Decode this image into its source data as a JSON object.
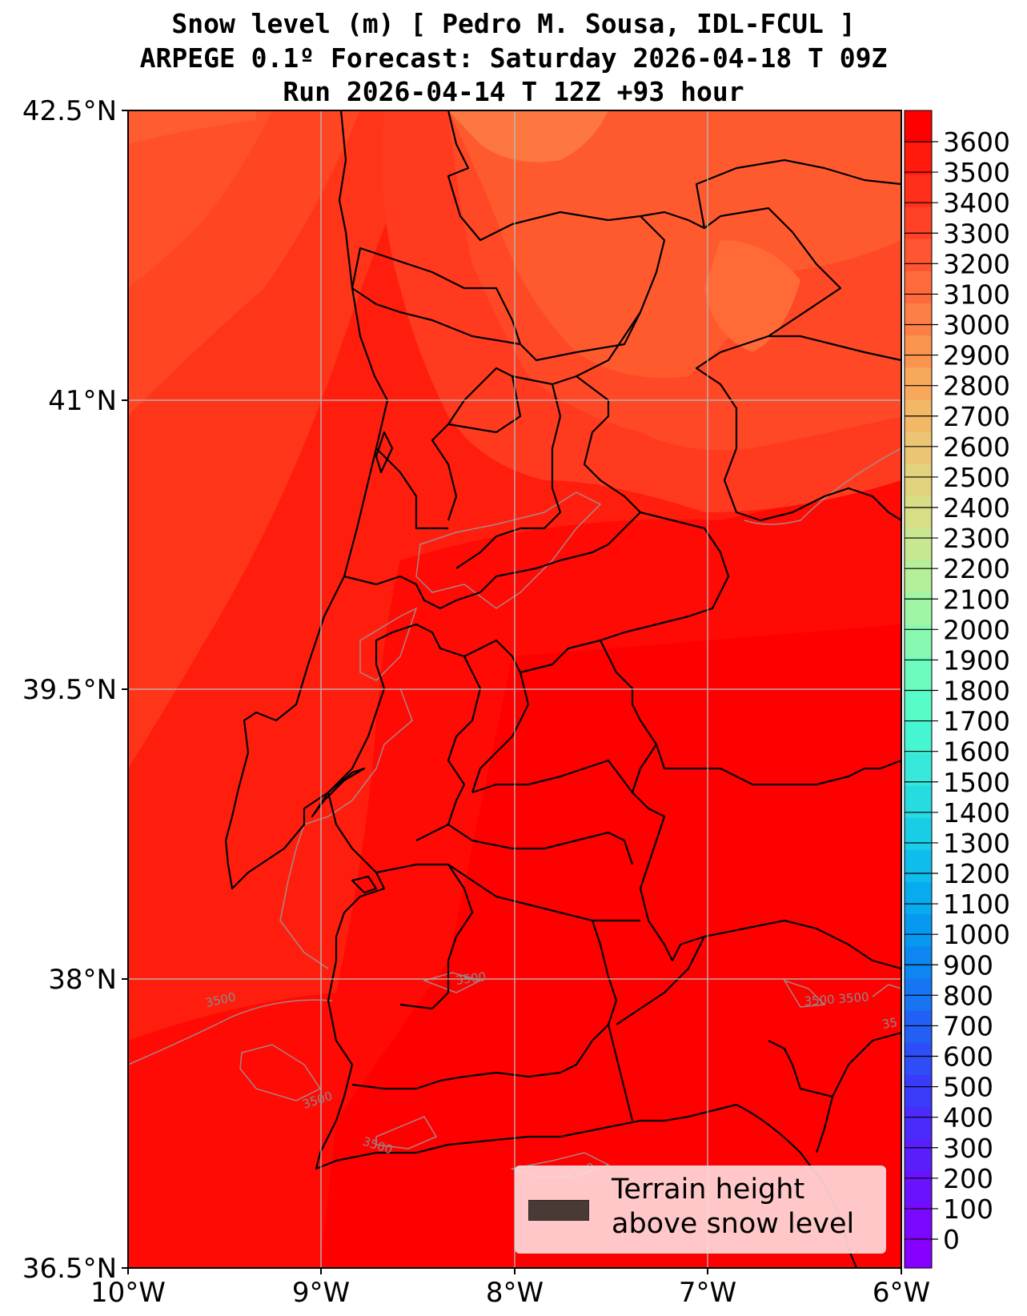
{
  "title": {
    "line1": "Snow level (m) [ Pedro M. Sousa, IDL-FCUL ]",
    "line2": "ARPEGE 0.1º Forecast: Saturday 2026-04-18 T 09Z",
    "line3": "Run 2026-04-14 T 12Z +93 hour"
  },
  "axes": {
    "y_labels": [
      "42.5°N",
      "41°N",
      "39.5°N",
      "38°N",
      "36.5°N"
    ],
    "x_labels": [
      "10°W",
      "9°W",
      "8°W",
      "7°W",
      "6°W"
    ]
  },
  "colorbar": {
    "labels": [
      "3600",
      "3500",
      "3400",
      "3300",
      "3200",
      "3100",
      "3000",
      "2900",
      "2800",
      "2700",
      "2600",
      "2500",
      "2400",
      "2300",
      "2200",
      "2100",
      "2000",
      "1900",
      "1800",
      "1700",
      "1600",
      "1500",
      "1400",
      "1300",
      "1200",
      "1100",
      "1000",
      "900",
      "800",
      "700",
      "600",
      "500",
      "400",
      "300",
      "200",
      "100",
      "0"
    ],
    "colors": [
      "#ff0000",
      "#ff1a0d",
      "#ff2f1a",
      "#ff4226",
      "#ff5533",
      "#ff6a3d",
      "#fd7f45",
      "#fb944f",
      "#f8a85b",
      "#f2b866",
      "#ebc573",
      "#e1d27d",
      "#d7de86",
      "#c8e791",
      "#b4ef9a",
      "#9ff6a4",
      "#87f9b0",
      "#6dfcbd",
      "#57fcc9",
      "#46f5d2",
      "#36e9da",
      "#27dce1",
      "#19cde6",
      "#0ebdeb",
      "#07abee",
      "#0798ef",
      "#0d86f1",
      "#1774f3",
      "#225ff5",
      "#2e4df7",
      "#3a3af9",
      "#4a2bfb",
      "#5a1efc",
      "#6a12fd",
      "#7a08fe",
      "#8700ff"
    ]
  },
  "contour_labels": [
    "3500",
    "3500",
    "3500",
    "3500",
    "3500 3500",
    "3500",
    "35"
  ],
  "legend": {
    "line1": "Terrain height",
    "line2": "above snow level",
    "swatch_color": "#4a3a36"
  }
}
